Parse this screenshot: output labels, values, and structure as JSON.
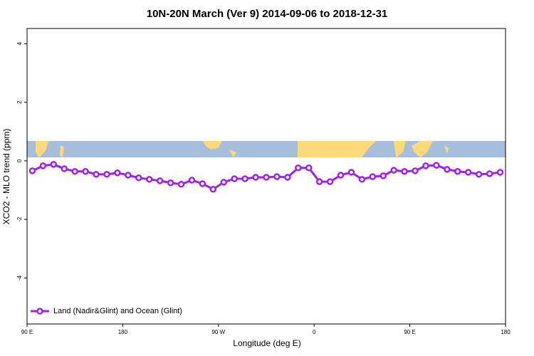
{
  "chart_data": {
    "type": "line",
    "title": "10N-20N March (Ver 9)   2014-09-06 to 2018-12-31",
    "x_label": "Longitude (deg E)",
    "y_label": "XCO2 - MLO trend (ppm)",
    "x": [
      95,
      105,
      115,
      125,
      135,
      145,
      155,
      165,
      175,
      185,
      195,
      205,
      215,
      225,
      235,
      245,
      255,
      265,
      275,
      285,
      295,
      305,
      315,
      325,
      335,
      345,
      355,
      365,
      375,
      385,
      395,
      405,
      415,
      425,
      435,
      445,
      455,
      465,
      475,
      485,
      495,
      505,
      515,
      525,
      535
    ],
    "series": [
      {
        "name": "Land (Nadir&Glint) and Ocean (Glint)",
        "color": "#a020f0",
        "values": [
          -0.34,
          -0.17,
          -0.12,
          -0.27,
          -0.36,
          -0.36,
          -0.46,
          -0.46,
          -0.41,
          -0.49,
          -0.58,
          -0.63,
          -0.68,
          -0.75,
          -0.8,
          -0.66,
          -0.78,
          -0.97,
          -0.73,
          -0.61,
          -0.61,
          -0.56,
          -0.56,
          -0.54,
          -0.56,
          -0.24,
          -0.24,
          -0.71,
          -0.71,
          -0.49,
          -0.39,
          -0.63,
          -0.54,
          -0.51,
          -0.32,
          -0.36,
          -0.34,
          -0.17,
          -0.15,
          -0.29,
          -0.36,
          -0.39,
          -0.46,
          -0.44,
          -0.39
        ]
      }
    ],
    "xlim": [
      90,
      540
    ],
    "xticks": [
      {
        "value": 90,
        "label": "90 E"
      },
      180,
      {
        "value": 270,
        "label": "90 W"
      },
      {
        "value": 360,
        "label": "0"
      },
      {
        "value": 450,
        "label": "90 E"
      },
      {
        "value": 540,
        "label": "180"
      }
    ],
    "ylim": [
      -5.57,
      4.52
    ],
    "yticks": [
      -4,
      -2,
      0,
      2,
      4
    ],
    "legend": "bottomleft"
  }
}
